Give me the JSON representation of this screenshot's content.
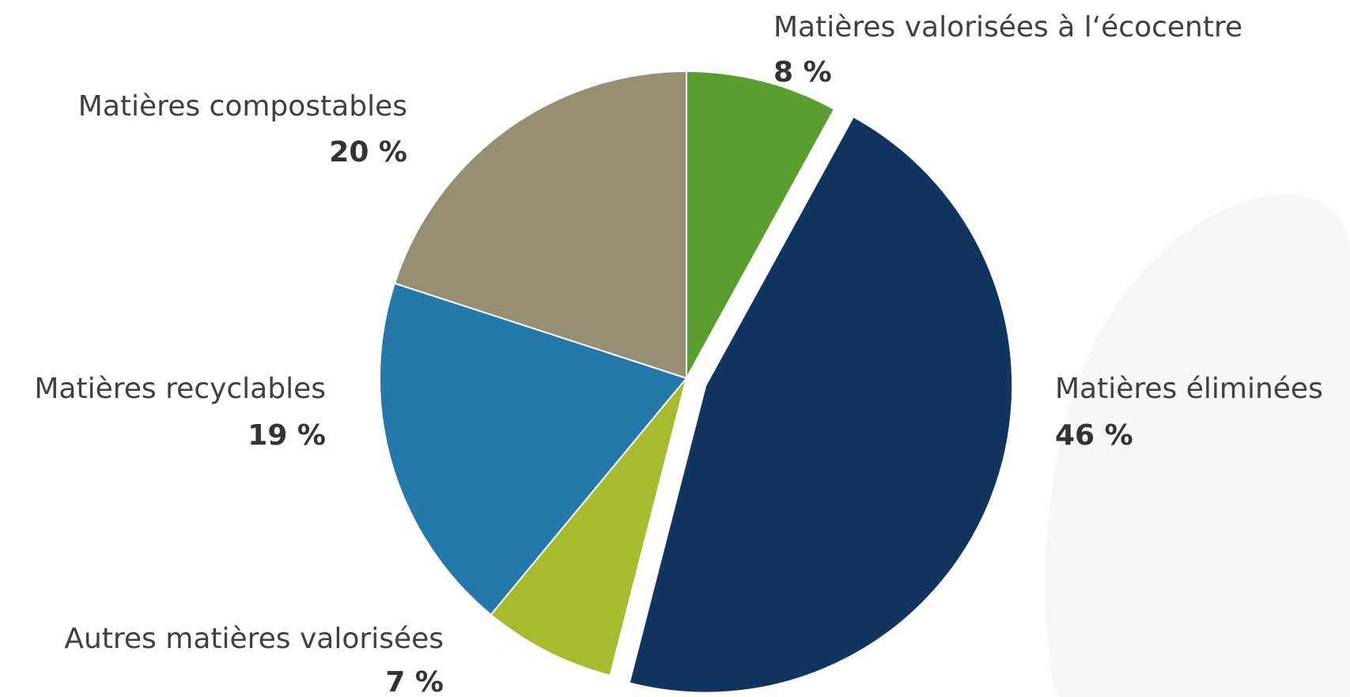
{
  "chart_data": {
    "type": "pie",
    "categories": [
      "Matières valorisées à l‘écocentre",
      "Matières éliminées",
      "Autres matières valorisées",
      "Matières recyclables",
      "Matières compostables"
    ],
    "values": [
      8,
      46,
      7,
      19,
      20
    ],
    "value_labels": [
      "8 %",
      "46 %",
      "7 %",
      "19 %",
      "20 %"
    ],
    "colors": [
      "#5a9e32",
      "#0f3560",
      "#a8bb2e",
      "#2478aa",
      "#978f74"
    ],
    "explode": [
      false,
      true,
      false,
      false,
      false
    ]
  }
}
